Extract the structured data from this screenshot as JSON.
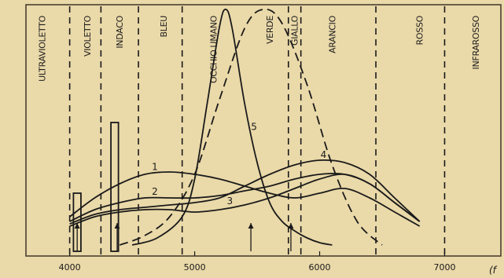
{
  "chart_data": {
    "type": "line",
    "title": "",
    "xlabel": "",
    "ylabel": "",
    "xlim": [
      3650,
      7450
    ],
    "ylim": [
      0,
      100
    ],
    "x_tick_labels": [
      "4000",
      "5000",
      "6000",
      "7000"
    ],
    "x_ticks": [
      4000,
      5000,
      6000,
      7000
    ],
    "corner_mark": "(f",
    "colors": {
      "background": "#ead9a9",
      "ink": "#1a1a1a",
      "frame": "#4a4030"
    },
    "bands": [
      {
        "label": "ULTRAVIOLETTO",
        "x": 3780
      },
      {
        "label": "VIOLETTO",
        "x": 4140
      },
      {
        "label": "INDACO",
        "x": 4400
      },
      {
        "label": "BLEU",
        "x": 4750
      },
      {
        "label": "OCCHIO UMANO",
        "x": 5150
      },
      {
        "label": "VERDE",
        "x": 5600
      },
      {
        "label": "GIALLO",
        "x": 5800
      },
      {
        "label": "ARANCIO",
        "x": 6100
      },
      {
        "label": "ROSSO",
        "x": 6800
      },
      {
        "label": "INFRAROSSO",
        "x": 7250
      }
    ],
    "boundaries": [
      4000,
      4250,
      4550,
      4900,
      5750,
      5850,
      6450,
      7000
    ],
    "series": [
      {
        "label": "1",
        "style": "solid",
        "x": [
          4000,
          4200,
          4400,
          4600,
          4800,
          5000,
          5200,
          5400,
          5600,
          5800,
          6000,
          6200,
          6400,
          6600,
          6800
        ],
        "y": [
          12,
          20,
          26,
          30,
          31,
          30,
          28,
          25,
          22,
          20,
          22,
          24,
          20,
          14,
          8
        ]
      },
      {
        "label": "2",
        "style": "solid",
        "x": [
          4000,
          4200,
          4400,
          4600,
          4800,
          5000,
          5200,
          5400,
          5600,
          5800,
          6000,
          6200,
          6400,
          6600,
          6800
        ],
        "y": [
          10,
          15,
          18,
          20,
          20,
          20,
          21,
          23,
          25,
          28,
          30,
          30,
          26,
          18,
          10
        ]
      },
      {
        "label": "3",
        "style": "solid",
        "x": [
          4000,
          4200,
          4400,
          4600,
          4800,
          5000,
          5200,
          5400,
          5600,
          5800,
          6000,
          6200,
          6400,
          6600,
          6800
        ],
        "y": [
          8,
          12,
          14,
          15,
          15,
          14,
          15,
          17,
          20,
          24,
          28,
          30,
          26,
          18,
          10
        ]
      },
      {
        "label": "4",
        "style": "solid",
        "x": [
          4000,
          4200,
          4400,
          4600,
          4800,
          5000,
          5200,
          5400,
          5600,
          5800,
          6000,
          6200,
          6400,
          6600,
          6800
        ],
        "y": [
          9,
          13,
          15,
          16,
          17,
          18,
          20,
          25,
          30,
          34,
          36,
          35,
          30,
          20,
          10
        ]
      },
      {
        "label": "5",
        "style": "solid",
        "x": [
          4500,
          4700,
          4900,
          5000,
          5100,
          5200,
          5250,
          5300,
          5400,
          5500,
          5600,
          5700,
          5800,
          5900,
          6000,
          6100
        ],
        "y": [
          0,
          3,
          12,
          28,
          60,
          93,
          100,
          92,
          60,
          35,
          18,
          10,
          6,
          3,
          1,
          0
        ]
      },
      {
        "label": "OCCHIO UMANO",
        "style": "dashed",
        "x": [
          4400,
          4600,
          4800,
          5000,
          5200,
          5400,
          5550,
          5700,
          5900,
          6100,
          6300,
          6500
        ],
        "y": [
          0,
          4,
          12,
          30,
          62,
          92,
          100,
          94,
          68,
          34,
          10,
          0
        ]
      }
    ],
    "series_label_at": [
      {
        "label": "1",
        "x": 4700
      },
      {
        "label": "2",
        "x": 4700
      },
      {
        "label": "3",
        "x": 5300
      },
      {
        "label": "4",
        "x": 6050
      },
      {
        "label": "5",
        "x": 5450
      }
    ],
    "lines": [
      {
        "x": 4060,
        "peak": 22,
        "width": 60
      },
      {
        "x": 4360,
        "peak": 52,
        "width": 60
      }
    ],
    "arrows": [
      {
        "x": 4060
      },
      {
        "x": 4380
      },
      {
        "x": 5450
      },
      {
        "x": 5770
      }
    ]
  }
}
